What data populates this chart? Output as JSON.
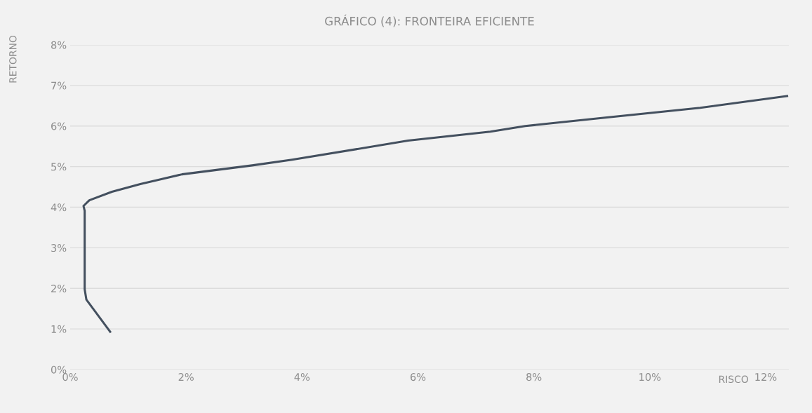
{
  "chart_data": {
    "type": "line",
    "title": "GRÁFICO (4): FRONTEIRA EFICIENTE",
    "xlabel": "RISCO",
    "ylabel": "RETORNO",
    "x": [
      0.69,
      0.28,
      0.25,
      0.25,
      0.23,
      0.33,
      0.72,
      1.21,
      1.93,
      3.14,
      3.83,
      5.83,
      7.25,
      7.85,
      9.26,
      10.87,
      12.37
    ],
    "series": [
      {
        "color": "#44505f",
        "values": [
          0.93,
          1.72,
          1.98,
          3.91,
          4.03,
          4.17,
          4.38,
          4.57,
          4.81,
          5.03,
          5.17,
          5.64,
          5.86,
          6.0,
          6.21,
          6.45,
          6.74
        ]
      }
    ],
    "xlim": [
      0,
      12.4
    ],
    "ylim": [
      0,
      8
    ],
    "xticks": [
      {
        "value": 0,
        "label": "0%"
      },
      {
        "value": 2,
        "label": "2%"
      },
      {
        "value": 4,
        "label": "4%"
      },
      {
        "value": 6,
        "label": "6%"
      },
      {
        "value": 8,
        "label": "8%"
      },
      {
        "value": 10,
        "label": "10%"
      },
      {
        "value": 12,
        "label": "12%"
      }
    ],
    "yticks": [
      {
        "value": 0,
        "label": "0%"
      },
      {
        "value": 1,
        "label": "1%"
      },
      {
        "value": 2,
        "label": "2%"
      },
      {
        "value": 3,
        "label": "3%"
      },
      {
        "value": 4,
        "label": "4%"
      },
      {
        "value": 5,
        "label": "5%"
      },
      {
        "value": 6,
        "label": "6%"
      },
      {
        "value": 7,
        "label": "7%"
      },
      {
        "value": 8,
        "label": "8%"
      }
    ],
    "grid": "y",
    "marker": "none",
    "line_style": "solid"
  }
}
